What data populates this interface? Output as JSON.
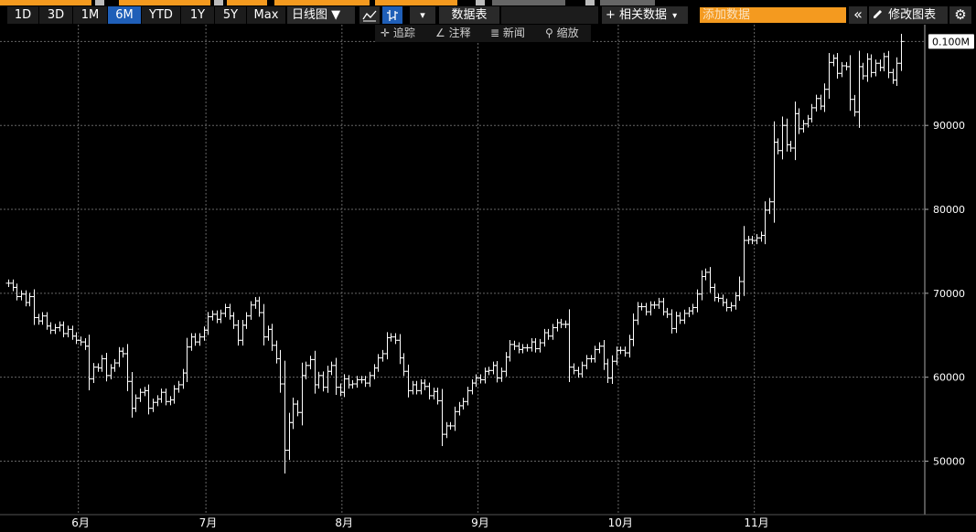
{
  "toolbar": {
    "periods": [
      {
        "label": "1D",
        "active": false
      },
      {
        "label": "3D",
        "active": false
      },
      {
        "label": "1M",
        "active": false
      },
      {
        "label": "6M",
        "active": true
      },
      {
        "label": "YTD",
        "active": false
      },
      {
        "label": "1Y",
        "active": false
      },
      {
        "label": "5Y",
        "active": false
      },
      {
        "label": "Max",
        "active": false
      }
    ],
    "chart_type": "日线图 ▼",
    "dropdown_caret": "▾",
    "data_table": "数据表",
    "related_data": "+ 相关数据",
    "related_caret": "▾",
    "add_data_placeholder": "添加数据",
    "collapse_icon": "«",
    "edit_chart": "修改图表",
    "settings_icon": "⚙"
  },
  "subtoolbar": {
    "track": "追踪",
    "annotate": "注释",
    "news": "新闻",
    "zoom": "缩放"
  },
  "chart_data": {
    "type": "ohlc",
    "title": "",
    "xlabel": "",
    "ylabel": "",
    "ylim": [
      44500,
      102000
    ],
    "y_ticks": [
      {
        "value": 50000,
        "label": "50000"
      },
      {
        "value": 60000,
        "label": "60000"
      },
      {
        "value": 70000,
        "label": "70000"
      },
      {
        "value": 80000,
        "label": "80000"
      },
      {
        "value": 90000,
        "label": "90000"
      }
    ],
    "last_value": 100000,
    "last_label": "0.100M",
    "month_labels": [
      {
        "label": "6月",
        "index": 17
      },
      {
        "label": "7月",
        "index": 47
      },
      {
        "label": "8月",
        "index": 79
      },
      {
        "label": "9月",
        "index": 111
      },
      {
        "label": "10月",
        "index": 144
      },
      {
        "label": "11月",
        "index": 176
      }
    ],
    "close": [
      71200,
      70700,
      69600,
      69900,
      68900,
      69600,
      67100,
      66700,
      67300,
      66100,
      65600,
      65900,
      66200,
      65200,
      65700,
      64900,
      64400,
      64200,
      63700,
      59800,
      61200,
      61100,
      62200,
      60200,
      61100,
      61700,
      63100,
      62800,
      59500,
      56300,
      57500,
      58200,
      58400,
      56300,
      57000,
      57400,
      58200,
      57100,
      57300,
      58600,
      59100,
      60500,
      63600,
      64800,
      64200,
      64800,
      65600,
      67200,
      67500,
      66900,
      67600,
      68300,
      67300,
      66200,
      64400,
      66200,
      67300,
      68600,
      69100,
      67700,
      64800,
      65700,
      63800,
      62200,
      59200,
      51300,
      54600,
      56800,
      55800,
      60200,
      61400,
      62100,
      59100,
      60200,
      58800,
      60700,
      61400,
      58800,
      58200,
      59800,
      59100,
      59200,
      59700,
      59700,
      59300,
      60200,
      61100,
      62300,
      62800,
      64700,
      64800,
      64400,
      62300,
      60700,
      58400,
      59100,
      58400,
      59300,
      58900,
      57800,
      58300,
      57200,
      53200,
      54200,
      54200,
      55900,
      56600,
      57100,
      58400,
      59300,
      59900,
      59700,
      60700,
      60800,
      61400,
      59900,
      60700,
      62400,
      63900,
      63700,
      63300,
      63500,
      63500,
      64200,
      63400,
      64100,
      65300,
      64900,
      65900,
      66500,
      66300,
      66300,
      61200,
      60800,
      60400,
      61400,
      62200,
      62200,
      63300,
      63700,
      61600,
      59900,
      61900,
      63200,
      63200,
      62900,
      64500,
      66800,
      68400,
      68400,
      67800,
      68600,
      68600,
      69000,
      67800,
      67500,
      65800,
      67300,
      66800,
      67600,
      67900,
      68300,
      69900,
      72000,
      72500,
      70700,
      69500,
      69400,
      68900,
      68300,
      68500,
      69700,
      71400,
      76300,
      76400,
      76300,
      76600,
      76900,
      79900,
      80900,
      88000,
      87000,
      90000,
      87700,
      87300,
      91400,
      89600,
      90200,
      90800,
      92100,
      93200,
      92300,
      94300,
      97500,
      98000,
      96200,
      97100,
      97000,
      93100,
      91600,
      97000,
      95900,
      97900,
      96300,
      97400,
      96900,
      98200,
      96300,
      95400,
      97400,
      100000
    ]
  }
}
